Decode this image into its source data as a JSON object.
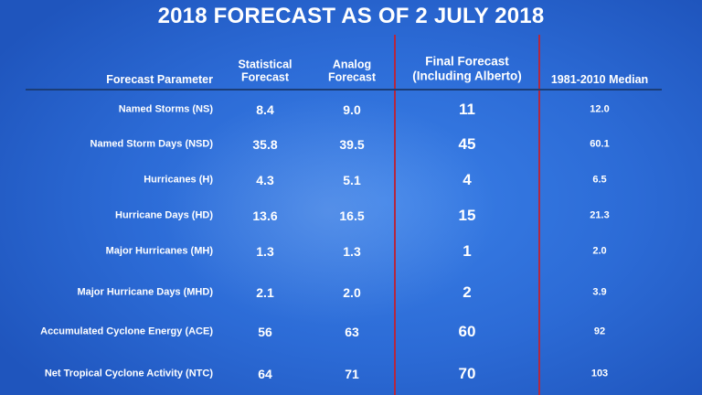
{
  "title": "2018 FORECAST AS OF 2 JULY 2018",
  "colors": {
    "background": "#2c6bd6",
    "divider": "#b3283f",
    "header_rule": "#1b3d78",
    "text": "#ffffff"
  },
  "headers": {
    "parameter": "Forecast Parameter",
    "statistical": [
      "Statistical",
      "Forecast"
    ],
    "analog": [
      "Analog",
      "Forecast"
    ],
    "final": [
      "Final Forecast",
      "(Including Alberto)"
    ],
    "median": "1981-2010 Median"
  },
  "rows": [
    {
      "parameter": "Named Storms (NS)",
      "statistical": "8.4",
      "analog": "9.0",
      "final": "11",
      "median": "12.0"
    },
    {
      "parameter": "Named Storm Days (NSD)",
      "statistical": "35.8",
      "analog": "39.5",
      "final": "45",
      "median": "60.1"
    },
    {
      "parameter": "Hurricanes (H)",
      "statistical": "4.3",
      "analog": "5.1",
      "final": "4",
      "median": "6.5"
    },
    {
      "parameter": "Hurricane Days (HD)",
      "statistical": "13.6",
      "analog": "16.5",
      "final": "15",
      "median": "21.3"
    },
    {
      "parameter": "Major Hurricanes (MH)",
      "statistical": "1.3",
      "analog": "1.3",
      "final": "1",
      "median": "2.0"
    },
    {
      "parameter": "Major Hurricane Days (MHD)",
      "statistical": "2.1",
      "analog": "2.0",
      "final": "2",
      "median": "3.9"
    },
    {
      "parameter": "Accumulated Cyclone Energy (ACE)",
      "statistical": "56",
      "analog": "63",
      "final": "60",
      "median": "92"
    },
    {
      "parameter": "Net Tropical Cyclone Activity (NTC)",
      "statistical": "64",
      "analog": "71",
      "final": "70",
      "median": "103"
    }
  ]
}
